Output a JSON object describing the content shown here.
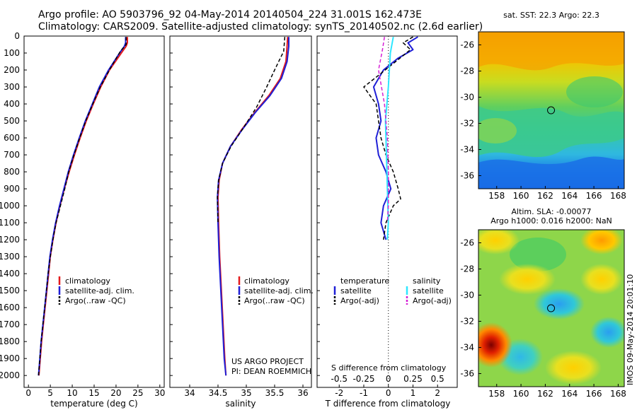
{
  "title": {
    "line1": "Argo profile: AO 5903796_92 04-May-2014 20140504_224 31.001S 162.473E",
    "line2": "Climatology: CARS2009. Satellite-adjusted climatology: synTS_20140502.nc (2.6d earlier)"
  },
  "colors": {
    "climatology": "#e41a1c",
    "satellite": "#1f1fd6",
    "argo": "#000000",
    "salinity_satellite": "#2ee6ff",
    "salinity_argo": "#d61fd6"
  },
  "chart_data": [
    {
      "type": "line",
      "name": "temperature",
      "xlabel": "temperature (deg C)",
      "ylabel": "",
      "xlim": [
        -1,
        31
      ],
      "ylim": [
        2070,
        0
      ],
      "xticks": [
        "0",
        "5",
        "10",
        "15",
        "20",
        "25",
        "30"
      ],
      "yticks": [
        "0",
        "100",
        "200",
        "300",
        "400",
        "500",
        "600",
        "700",
        "800",
        "900",
        "1000",
        "1100",
        "1200",
        "1300",
        "1400",
        "1500",
        "1600",
        "1700",
        "1800",
        "1900",
        "2000"
      ],
      "legend": [
        "climatology",
        "satellite-adj. clim.",
        "Argo(..raw -QC)"
      ],
      "series": [
        {
          "name": "climatology",
          "color_key": "climatology",
          "width": 2,
          "points": [
            [
              22.6,
              5
            ],
            [
              22.6,
              40
            ],
            [
              22.3,
              60
            ],
            [
              21.2,
              100
            ],
            [
              18.5,
              200
            ],
            [
              16.5,
              300
            ],
            [
              14.8,
              400
            ],
            [
              13.2,
              500
            ],
            [
              11.8,
              600
            ],
            [
              10.5,
              700
            ],
            [
              9.3,
              800
            ],
            [
              8.2,
              900
            ],
            [
              7.2,
              1000
            ],
            [
              6.3,
              1100
            ],
            [
              5.6,
              1200
            ],
            [
              5.0,
              1300
            ],
            [
              4.6,
              1400
            ],
            [
              4.2,
              1500
            ],
            [
              3.8,
              1600
            ],
            [
              3.4,
              1700
            ],
            [
              3.0,
              1800
            ],
            [
              2.7,
              1900
            ],
            [
              2.4,
              2000
            ]
          ]
        },
        {
          "name": "satellite-adj. clim.",
          "color_key": "satellite",
          "width": 2,
          "points": [
            [
              22.2,
              5
            ],
            [
              22.2,
              40
            ],
            [
              21.9,
              60
            ],
            [
              20.8,
              100
            ],
            [
              18.3,
              200
            ],
            [
              16.2,
              300
            ],
            [
              14.6,
              400
            ],
            [
              13.0,
              500
            ],
            [
              11.6,
              600
            ],
            [
              10.3,
              700
            ],
            [
              9.1,
              800
            ],
            [
              8.1,
              900
            ],
            [
              7.1,
              1000
            ],
            [
              6.2,
              1100
            ],
            [
              5.5,
              1200
            ],
            [
              4.9,
              1300
            ],
            [
              4.5,
              1400
            ],
            [
              4.1,
              1500
            ],
            [
              3.7,
              1600
            ],
            [
              3.3,
              1700
            ],
            [
              2.9,
              1800
            ],
            [
              2.6,
              1900
            ],
            [
              2.3,
              2000
            ]
          ]
        },
        {
          "name": "Argo(..raw -QC)",
          "color_key": "argo",
          "width": 1.5,
          "dash": "5,3",
          "points": [
            [
              22.3,
              5
            ],
            [
              22.3,
              50
            ],
            [
              21.0,
              90
            ],
            [
              18.7,
              190
            ],
            [
              16.4,
              300
            ],
            [
              14.7,
              400
            ],
            [
              13.1,
              500
            ],
            [
              11.7,
              600
            ],
            [
              10.4,
              700
            ],
            [
              9.2,
              800
            ],
            [
              8.3,
              900
            ],
            [
              7.3,
              1000
            ],
            [
              6.3,
              1100
            ],
            [
              5.6,
              1200
            ],
            [
              5.0,
              1300
            ],
            [
              4.5,
              1400
            ],
            [
              4.1,
              1500
            ],
            [
              3.7,
              1600
            ],
            [
              3.3,
              1700
            ],
            [
              2.9,
              1800
            ],
            [
              2.6,
              1900
            ],
            [
              2.3,
              2000
            ]
          ]
        }
      ]
    },
    {
      "type": "line",
      "name": "salinity",
      "xlabel": "salinity",
      "ylabel": "",
      "xlim": [
        33.65,
        36.15
      ],
      "ylim": [
        2070,
        0
      ],
      "xticks": [
        "34",
        "34.5",
        "35",
        "35.5",
        "36"
      ],
      "legend": [
        "climatology",
        "satellite-adj. clim.",
        "Argo(..raw -QC)"
      ],
      "annotation": [
        "US ARGO PROJECT",
        "PI: DEAN ROEMMICH"
      ],
      "series": [
        {
          "name": "climatology",
          "color_key": "climatology",
          "width": 2,
          "points": [
            [
              35.73,
              5
            ],
            [
              35.72,
              60
            ],
            [
              35.7,
              150
            ],
            [
              35.6,
              250
            ],
            [
              35.4,
              350
            ],
            [
              35.15,
              450
            ],
            [
              34.92,
              550
            ],
            [
              34.72,
              650
            ],
            [
              34.58,
              750
            ],
            [
              34.52,
              850
            ],
            [
              34.5,
              950
            ],
            [
              34.51,
              1100
            ],
            [
              34.53,
              1300
            ],
            [
              34.56,
              1500
            ],
            [
              34.59,
              1700
            ],
            [
              34.62,
              1900
            ],
            [
              34.64,
              2000
            ]
          ]
        },
        {
          "name": "satellite-adj. clim.",
          "color_key": "satellite",
          "width": 2,
          "points": [
            [
              35.75,
              5
            ],
            [
              35.75,
              60
            ],
            [
              35.72,
              150
            ],
            [
              35.62,
              250
            ],
            [
              35.42,
              350
            ],
            [
              35.16,
              450
            ],
            [
              34.93,
              550
            ],
            [
              34.72,
              650
            ],
            [
              34.58,
              750
            ],
            [
              34.51,
              850
            ],
            [
              34.49,
              950
            ],
            [
              34.5,
              1100
            ],
            [
              34.52,
              1300
            ],
            [
              34.55,
              1500
            ],
            [
              34.58,
              1700
            ],
            [
              34.61,
              1900
            ],
            [
              34.64,
              2000
            ]
          ]
        },
        {
          "name": "Argo(..raw -QC)",
          "color_key": "argo",
          "width": 1.5,
          "dash": "5,3",
          "points": [
            [
              35.68,
              5
            ],
            [
              35.66,
              90
            ],
            [
              35.5,
              200
            ],
            [
              35.36,
              300
            ],
            [
              35.18,
              420
            ],
            [
              34.95,
              540
            ],
            [
              34.73,
              650
            ],
            [
              34.58,
              750
            ],
            [
              34.51,
              850
            ],
            [
              34.49,
              950
            ],
            [
              34.5,
              1100
            ]
          ]
        }
      ]
    },
    {
      "type": "line",
      "name": "difference",
      "xlabel": "T difference from climatology",
      "x2label": "S difference from climatology",
      "ylabel": "",
      "xlim": [
        -2.9,
        2.8
      ],
      "x2lim": [
        -0.725,
        0.7
      ],
      "ylim": [
        2070,
        0
      ],
      "xticks": [
        "-2",
        "-1",
        "0",
        "1",
        "2"
      ],
      "x2ticks": [
        "-0.5",
        "-0.25",
        "0",
        "0.25",
        "0.5"
      ],
      "legend_headers": [
        "temperature",
        "salinity"
      ],
      "legend": [
        "satellite",
        "Argo(-adj)",
        "satellite",
        "Argo(-adj)"
      ],
      "series": [
        {
          "name": "temperature satellite",
          "axis": "T",
          "color_key": "satellite",
          "width": 2,
          "points": [
            [
              1.2,
              5
            ],
            [
              0.8,
              40
            ],
            [
              1.0,
              80
            ],
            [
              0.4,
              130
            ],
            [
              -0.2,
              200
            ],
            [
              -0.6,
              300
            ],
            [
              -0.4,
              400
            ],
            [
              -0.3,
              500
            ],
            [
              -0.5,
              600
            ],
            [
              -0.4,
              700
            ],
            [
              -0.1,
              800
            ],
            [
              0.1,
              900
            ],
            [
              -0.2,
              1000
            ],
            [
              -0.3,
              1100
            ],
            [
              -0.1,
              1200
            ]
          ]
        },
        {
          "name": "temperature Argo",
          "axis": "T",
          "color_key": "argo",
          "width": 1.5,
          "dash": "5,3",
          "points": [
            [
              1.0,
              5
            ],
            [
              0.6,
              40
            ],
            [
              0.9,
              80
            ],
            [
              -0.3,
              220
            ],
            [
              -1.0,
              300
            ],
            [
              -0.5,
              400
            ],
            [
              -0.4,
              500
            ],
            [
              -0.3,
              600
            ],
            [
              -0.1,
              700
            ],
            [
              0.2,
              800
            ],
            [
              0.4,
              900
            ],
            [
              0.5,
              960
            ],
            [
              0.2,
              1000
            ],
            [
              -0.1,
              1100
            ],
            [
              -0.2,
              1200
            ]
          ]
        },
        {
          "name": "salinity satellite",
          "axis": "S",
          "color_key": "salinity_satellite",
          "width": 2,
          "points": [
            [
              0.05,
              5
            ],
            [
              0.02,
              100
            ],
            [
              0.0,
              300
            ],
            [
              -0.03,
              500
            ],
            [
              -0.02,
              700
            ],
            [
              -0.01,
              900
            ],
            [
              0.0,
              1100
            ],
            [
              -0.01,
              1200
            ]
          ]
        },
        {
          "name": "salinity Argo",
          "axis": "S",
          "color_key": "salinity_argo",
          "width": 1.5,
          "dash": "5,3",
          "points": [
            [
              -0.04,
              5
            ],
            [
              -0.06,
              80
            ],
            [
              -0.1,
              200
            ],
            [
              -0.04,
              400
            ],
            [
              -0.01,
              600
            ],
            [
              0.0,
              800
            ],
            [
              0.0,
              1000
            ],
            [
              -0.01,
              1100
            ]
          ]
        }
      ]
    },
    {
      "type": "heatmap",
      "name": "sst-map",
      "title": "sat. SST: 22.3   Argo: 22.3",
      "xlim": [
        156.5,
        168.5
      ],
      "ylim": [
        -37,
        -25
      ],
      "xticks": [
        "158",
        "160",
        "162",
        "164",
        "166",
        "168"
      ],
      "yticks": [
        "-26",
        "-28",
        "-30",
        "-32",
        "-34",
        "-36"
      ],
      "marker": {
        "lon": 162.473,
        "lat": -31.001
      }
    },
    {
      "type": "heatmap",
      "name": "sla-map",
      "title": "Altim. SLA: -0.00077",
      "subtitle": "Argo h1000: 0.016 h2000: NaN",
      "xlim": [
        156.5,
        168.5
      ],
      "ylim": [
        -37,
        -25
      ],
      "xticks": [
        "158",
        "160",
        "162",
        "164",
        "166",
        "168"
      ],
      "yticks": [
        "-26",
        "-28",
        "-30",
        "-32",
        "-34",
        "-36"
      ],
      "marker": {
        "lon": 162.473,
        "lat": -31.001
      }
    }
  ],
  "credit": "IMOS 09-May-2014 20:01:10"
}
